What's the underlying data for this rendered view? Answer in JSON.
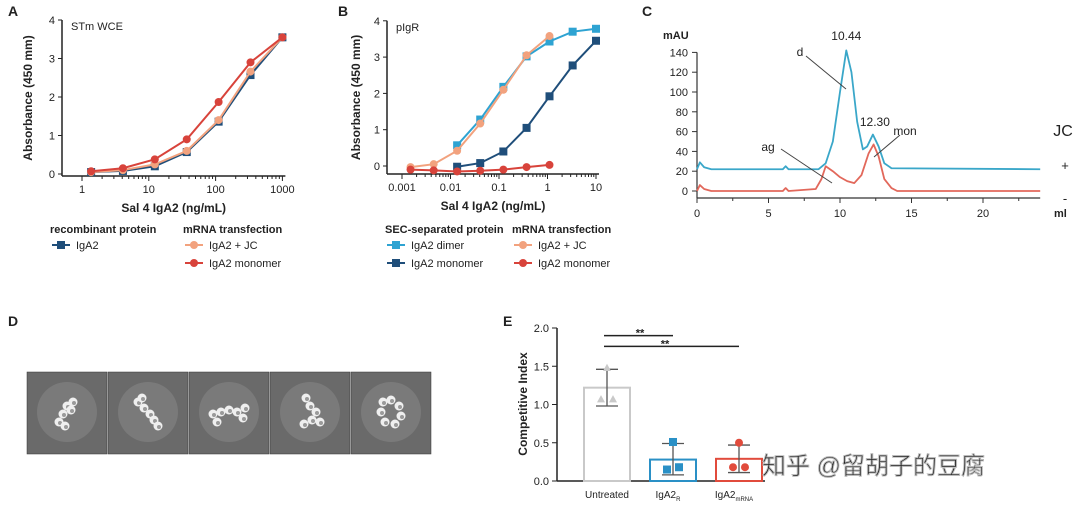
{
  "panel_labels": {
    "A": "A",
    "B": "B",
    "C": "C",
    "D": "D",
    "E": "E"
  },
  "watermark": "知乎 @留胡子的豆腐",
  "colors": {
    "navy": "#1f4e7a",
    "cyan": "#2ea3d2",
    "orange": "#f2a27e",
    "red": "#d8433b",
    "c_cyan": "#3aa7c9",
    "c_red": "#e2685b",
    "e_gray": "#c9c9c9",
    "e_blue": "#2a90c6",
    "e_red": "#e14b3c"
  },
  "chart_data": [
    {
      "id": "A",
      "type": "line",
      "title": "STm WCE",
      "xlabel": "Sal 4 IgA2 (ng/mL)",
      "ylabel": "Absorbance (450 mm)",
      "xscale": "log",
      "xlim": [
        0.5,
        1000
      ],
      "ylim": [
        0,
        4
      ],
      "xticks": [
        1,
        10,
        100,
        1000
      ],
      "xtick_labels": [
        "1",
        "10",
        "100",
        "1000"
      ],
      "yticks": [
        0,
        1,
        2,
        3,
        4
      ],
      "ytick_labels": [
        "0",
        "1",
        "2",
        "3",
        "4"
      ],
      "legend_groups": [
        {
          "title": "recombinant protein",
          "items": [
            0
          ]
        },
        {
          "title": "mRNA transfection",
          "items": [
            1,
            2
          ]
        }
      ],
      "series": [
        {
          "name": "IgA2",
          "color": "navy",
          "marker": "square",
          "x": [
            1.37,
            4.1,
            12.3,
            37,
            111,
            333,
            1000
          ],
          "y": [
            0.05,
            0.08,
            0.2,
            0.57,
            1.36,
            2.57,
            3.55
          ]
        },
        {
          "name": "IgA2 + JC",
          "color": "orange",
          "marker": "circle",
          "x": [
            1.37,
            4.1,
            12.3,
            37,
            111,
            333,
            1000
          ],
          "y": [
            0.05,
            0.1,
            0.25,
            0.6,
            1.4,
            2.66,
            3.55
          ]
        },
        {
          "name": "IgA2 monomer",
          "color": "red",
          "marker": "circle",
          "x": [
            1.37,
            4.1,
            12.3,
            37,
            111,
            333,
            1000
          ],
          "y": [
            0.07,
            0.15,
            0.38,
            0.9,
            1.87,
            2.9,
            3.55
          ]
        }
      ]
    },
    {
      "id": "B",
      "type": "line",
      "title": "pIgR",
      "xlabel": "Sal 4 IgA2 (ng/mL)",
      "ylabel": "Absorbance (450 mm)",
      "xscale": "log",
      "xlim": [
        0.001,
        10
      ],
      "ylim": [
        -0.2,
        4
      ],
      "xticks": [
        0.001,
        0.01,
        0.1,
        1,
        10
      ],
      "xtick_labels": [
        "0.001",
        "0.01",
        "0.1",
        "1",
        "10"
      ],
      "yticks": [
        0,
        1,
        2,
        3,
        4
      ],
      "ytick_labels": [
        "0",
        "1",
        "2",
        "3",
        "4"
      ],
      "legend_groups": [
        {
          "title": "SEC-separated protein",
          "items": [
            0,
            1
          ]
        },
        {
          "title": "mRNA transfection",
          "items": [
            2,
            3
          ]
        }
      ],
      "series": [
        {
          "name": "IgA2 dimer",
          "color": "cyan",
          "marker": "square",
          "x": [
            0.0137,
            0.041,
            0.123,
            0.37,
            1.1,
            3.3,
            10
          ],
          "y": [
            0.57,
            1.28,
            2.18,
            3.02,
            3.43,
            3.7,
            3.78
          ]
        },
        {
          "name": "IgA2 monomer",
          "color": "navy",
          "marker": "square",
          "x": [
            0.0137,
            0.041,
            0.123,
            0.37,
            1.1,
            3.3,
            10
          ],
          "y": [
            -0.02,
            0.08,
            0.4,
            1.05,
            1.92,
            2.77,
            3.45
          ]
        },
        {
          "name": "IgA2 + JC",
          "color": "orange",
          "marker": "circle",
          "x": [
            0.0015,
            0.0045,
            0.0137,
            0.041,
            0.123,
            0.37,
            1.1
          ],
          "y": [
            -0.03,
            0.05,
            0.42,
            1.17,
            2.1,
            3.05,
            3.58
          ]
        },
        {
          "name": "IgA2 monomer",
          "color": "red",
          "marker": "circle",
          "x": [
            0.0015,
            0.0045,
            0.0137,
            0.041,
            0.123,
            0.37,
            1.1
          ],
          "y": [
            -0.1,
            -0.12,
            -0.15,
            -0.13,
            -0.1,
            -0.03,
            0.03
          ]
        }
      ]
    },
    {
      "id": "C",
      "type": "line",
      "xlabel": "ml",
      "ylabel": "mAU",
      "xlim": [
        0,
        24
      ],
      "ylim": [
        0,
        140
      ],
      "xticks": [
        0,
        5,
        10,
        15,
        20
      ],
      "xtick_labels": [
        "0",
        "5",
        "10",
        "15",
        "20"
      ],
      "yticks": [
        0,
        20,
        40,
        60,
        80,
        100,
        120,
        140
      ],
      "ytick_labels": [
        "0",
        "20",
        "40",
        "60",
        "80",
        "100",
        "120",
        "140"
      ],
      "legend_title": "JC",
      "annotations": [
        {
          "text": "10.44",
          "x": 10.44,
          "y": 142
        },
        {
          "text": "12.30",
          "x": 12.3,
          "y": 57
        },
        {
          "text": "d",
          "x": 10.4,
          "y": 105
        },
        {
          "text": "ag",
          "x": 9.5,
          "y": 7
        },
        {
          "text": "mon",
          "x": 12.4,
          "y": 35
        }
      ],
      "series": [
        {
          "name": "+",
          "color": "c_cyan",
          "points": [
            [
              0,
              22
            ],
            [
              0.2,
              29
            ],
            [
              0.5,
              24
            ],
            [
              1,
              22
            ],
            [
              6,
              22
            ],
            [
              6.2,
              25
            ],
            [
              6.4,
              22
            ],
            [
              8.5,
              22
            ],
            [
              9,
              28
            ],
            [
              9.5,
              50
            ],
            [
              10,
              100
            ],
            [
              10.44,
              142
            ],
            [
              10.8,
              120
            ],
            [
              11.2,
              70
            ],
            [
              11.6,
              42
            ],
            [
              11.9,
              45
            ],
            [
              12.3,
              57
            ],
            [
              12.7,
              45
            ],
            [
              13.1,
              28
            ],
            [
              13.6,
              23
            ],
            [
              24,
              22
            ]
          ]
        },
        {
          "name": "-",
          "color": "c_red",
          "points": [
            [
              0,
              0
            ],
            [
              0.2,
              6
            ],
            [
              0.5,
              2
            ],
            [
              1,
              0
            ],
            [
              6,
              0
            ],
            [
              6.2,
              3
            ],
            [
              6.4,
              0
            ],
            [
              8.3,
              2
            ],
            [
              8.7,
              12
            ],
            [
              9.0,
              25
            ],
            [
              9.5,
              20
            ],
            [
              10,
              14
            ],
            [
              10.5,
              10
            ],
            [
              11,
              8
            ],
            [
              11.5,
              16
            ],
            [
              12.0,
              38
            ],
            [
              12.35,
              47
            ],
            [
              12.7,
              35
            ],
            [
              13.1,
              12
            ],
            [
              13.6,
              3
            ],
            [
              14,
              0
            ],
            [
              24,
              0
            ]
          ]
        }
      ]
    },
    {
      "id": "E",
      "type": "bar",
      "ylabel": "Competitive Index",
      "ylim": [
        0,
        2.0
      ],
      "yticks": [
        0,
        0.5,
        1.0,
        1.5,
        2.0
      ],
      "ytick_labels": [
        "0.0",
        "0.5",
        "1.0",
        "1.5",
        "2.0"
      ],
      "categories": [
        {
          "main": "Untreated",
          "sub": ""
        },
        {
          "main": "IgA2",
          "sub": "R"
        },
        {
          "main": "IgA2",
          "sub": "mRNA"
        }
      ],
      "values": [
        1.22,
        0.28,
        0.29
      ],
      "error_upper": [
        1.46,
        0.49,
        0.47
      ],
      "error_lower": [
        0.98,
        0.08,
        0.11
      ],
      "points": [
        [
          1.48,
          1.07,
          1.07
        ],
        [
          0.51,
          0.15,
          0.18
        ],
        [
          0.5,
          0.18,
          0.18
        ]
      ],
      "markers": [
        "triangle",
        "square",
        "circle"
      ],
      "bar_colors": [
        "e_gray",
        "e_blue",
        "e_red"
      ],
      "significance": [
        {
          "from": 0,
          "to": 1,
          "y": 1.9,
          "label": "**"
        },
        {
          "from": 0,
          "to": 2,
          "y": 1.76,
          "label": "**"
        }
      ]
    }
  ],
  "panel_D": {
    "type": "image",
    "tiles": 5
  }
}
